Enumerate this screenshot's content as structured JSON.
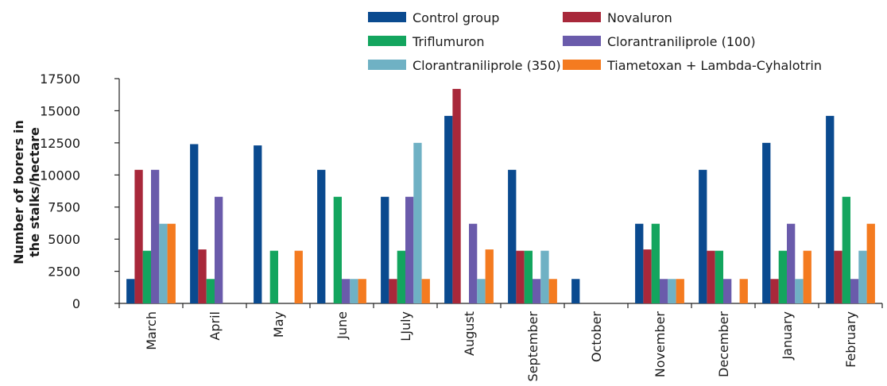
{
  "chart_data": {
    "type": "bar",
    "title": "",
    "xlabel": "",
    "ylabel_lines": [
      "Number of borers in",
      "the stalks/hectare"
    ],
    "ylim": [
      0,
      17500
    ],
    "yticks": [
      0,
      2500,
      5000,
      7500,
      10000,
      12500,
      15000,
      17500
    ],
    "ytick_labels": [
      "0",
      "2500",
      "5000",
      "7500",
      "10000",
      "12500",
      "15000",
      "17500"
    ],
    "grid": false,
    "legend_position": "top-right",
    "categories": [
      "March",
      "April",
      "May",
      "June",
      "LJuly",
      "August",
      "September",
      "October",
      "November",
      "December",
      "January",
      "February"
    ],
    "series": [
      {
        "name": "Control group",
        "color": "#0a4a8f",
        "values": [
          1900,
          12400,
          12300,
          10400,
          8300,
          14600,
          10400,
          1900,
          6200,
          10400,
          12500,
          14600
        ]
      },
      {
        "name": "Novaluron",
        "color": "#a8283a",
        "values": [
          10400,
          4200,
          0,
          0,
          1900,
          16700,
          4100,
          0,
          4200,
          4100,
          1900,
          4100
        ]
      },
      {
        "name": "Triflumuron",
        "color": "#13a55e",
        "values": [
          4100,
          1900,
          4100,
          8300,
          4100,
          0,
          4100,
          0,
          6200,
          4100,
          4100,
          8300
        ]
      },
      {
        "name": "Clorantraniliprole (100)",
        "color": "#6a5bab",
        "values": [
          10400,
          8300,
          0,
          1900,
          8300,
          6200,
          1900,
          0,
          1900,
          1900,
          6200,
          1900
        ]
      },
      {
        "name": "Clorantraniliprole (350)",
        "color": "#6fb1c4",
        "values": [
          6200,
          0,
          0,
          1900,
          12500,
          1900,
          4100,
          0,
          1900,
          0,
          1900,
          4100
        ]
      },
      {
        "name": "Tiametoxan + Lambda-Cyhalotrin",
        "color": "#f47b20",
        "values": [
          6200,
          0,
          4100,
          1900,
          1900,
          4200,
          1900,
          0,
          1900,
          1900,
          4100,
          6200
        ]
      }
    ]
  }
}
